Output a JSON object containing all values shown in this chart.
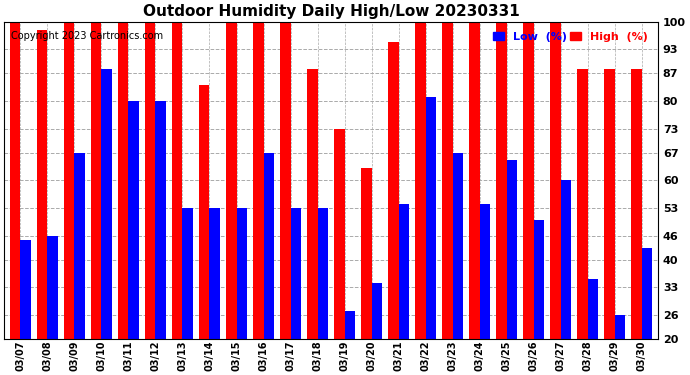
{
  "title": "Outdoor Humidity Daily High/Low 20230331",
  "copyright": "Copyright 2023 Cartronics.com",
  "legend_low": "Low  (%)",
  "legend_high": "High  (%)",
  "ylabel_right_ticks": [
    20,
    26,
    33,
    40,
    46,
    53,
    60,
    67,
    73,
    80,
    87,
    93,
    100
  ],
  "dates": [
    "03/07",
    "03/08",
    "03/09",
    "03/10",
    "03/11",
    "03/12",
    "03/13",
    "03/14",
    "03/15",
    "03/16",
    "03/17",
    "03/18",
    "03/19",
    "03/20",
    "03/21",
    "03/22",
    "03/23",
    "03/24",
    "03/25",
    "03/26",
    "03/27",
    "03/28",
    "03/29",
    "03/30"
  ],
  "high": [
    100,
    98,
    100,
    100,
    100,
    100,
    100,
    84,
    100,
    100,
    100,
    88,
    73,
    63,
    95,
    100,
    100,
    100,
    100,
    100,
    100,
    88,
    88,
    88
  ],
  "low": [
    45,
    46,
    67,
    88,
    80,
    80,
    53,
    53,
    53,
    67,
    53,
    53,
    27,
    34,
    54,
    81,
    67,
    54,
    65,
    50,
    60,
    35,
    26,
    43
  ],
  "bar_color_high": "#ff0000",
  "bar_color_low": "#0000ff",
  "background_color": "#ffffff",
  "grid_color": "#aaaaaa",
  "title_fontsize": 11,
  "copyright_fontsize": 7,
  "ylim": [
    20,
    100
  ],
  "ybase": 20,
  "bar_width": 0.38
}
